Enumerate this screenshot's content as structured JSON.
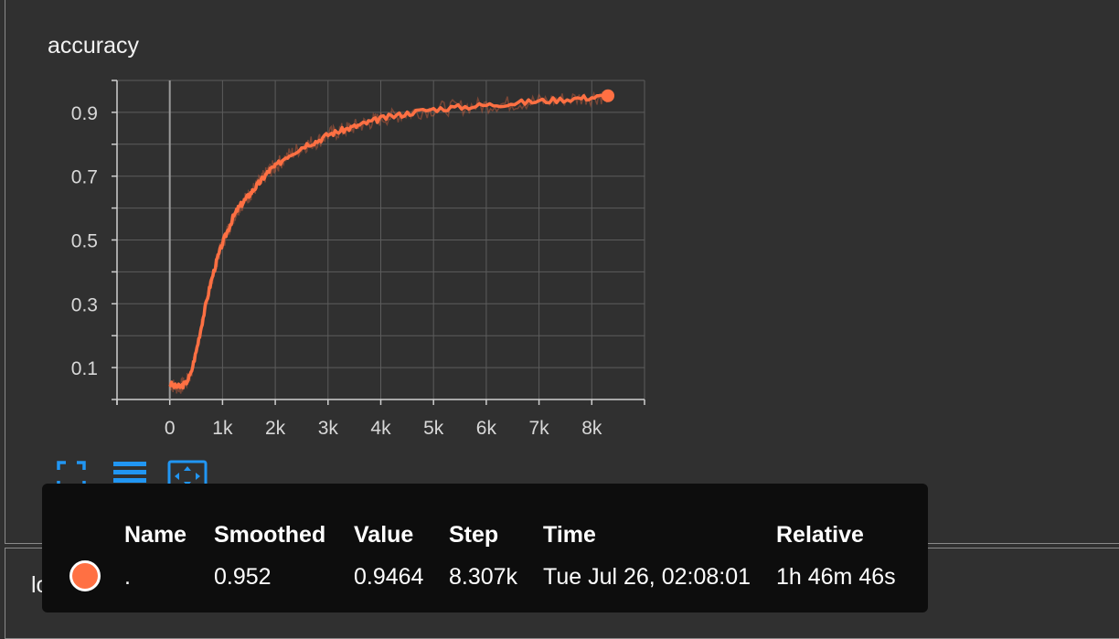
{
  "card": {
    "title": "accuracy"
  },
  "second_card": {
    "title": "loss"
  },
  "toolbar": {
    "buttons": [
      {
        "icon": "fullscreen-icon"
      },
      {
        "icon": "data-table-icon"
      },
      {
        "icon": "fit-domain-icon"
      }
    ]
  },
  "chart_data": {
    "type": "line",
    "title": "accuracy",
    "x_ticks": [
      "0",
      "1k",
      "2k",
      "3k",
      "4k",
      "5k",
      "6k",
      "7k",
      "8k"
    ],
    "y_ticks": [
      "0.1",
      "0.3",
      "0.5",
      "0.7",
      "0.9"
    ],
    "xlim": [
      -1000,
      9000
    ],
    "ylim": [
      0,
      1
    ],
    "grid": true,
    "series": [
      {
        "name": ".",
        "color": "#ff7043",
        "x": [
          0,
          100,
          200,
          300,
          400,
          500,
          600,
          700,
          800,
          900,
          1000,
          1100,
          1200,
          1300,
          1400,
          1500,
          1600,
          1700,
          1800,
          1900,
          2000,
          2200,
          2400,
          2600,
          2800,
          3000,
          3200,
          3400,
          3600,
          3800,
          4000,
          4300,
          4600,
          5000,
          5400,
          5800,
          6200,
          6600,
          7000,
          7400,
          7800,
          8100,
          8307
        ],
        "y": [
          0.05,
          0.04,
          0.04,
          0.05,
          0.08,
          0.15,
          0.23,
          0.31,
          0.38,
          0.44,
          0.49,
          0.53,
          0.57,
          0.6,
          0.62,
          0.64,
          0.66,
          0.68,
          0.7,
          0.72,
          0.73,
          0.76,
          0.78,
          0.8,
          0.81,
          0.83,
          0.84,
          0.85,
          0.86,
          0.87,
          0.88,
          0.89,
          0.9,
          0.91,
          0.915,
          0.92,
          0.925,
          0.93,
          0.935,
          0.94,
          0.945,
          0.948,
          0.952
        ]
      }
    ]
  },
  "tooltip": {
    "headers": [
      "Name",
      "Smoothed",
      "Value",
      "Step",
      "Time",
      "Relative"
    ],
    "row": {
      "name": ".",
      "smoothed": "0.952",
      "value": "0.9464",
      "step": "8.307k",
      "time": "Tue Jul 26, 02:08:01",
      "relative": "1h 46m 46s"
    }
  }
}
